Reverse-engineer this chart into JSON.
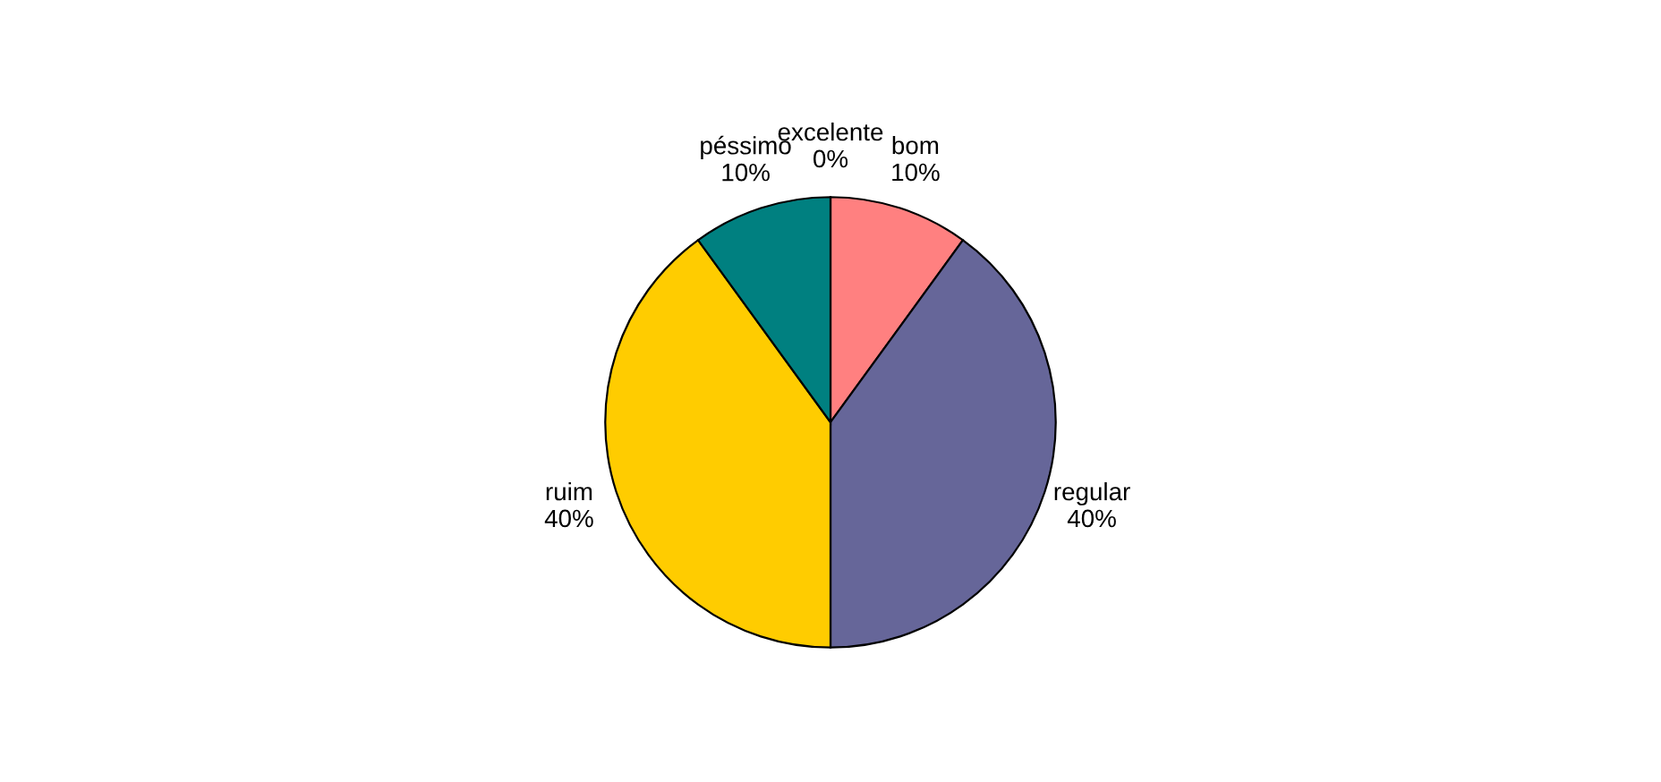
{
  "chart_data": {
    "type": "pie",
    "categories": [
      "excelente",
      "bom",
      "regular",
      "ruim",
      "péssimo"
    ],
    "values": [
      0,
      10,
      40,
      40,
      10
    ],
    "value_labels": [
      "0%",
      "10%",
      "40%",
      "40%",
      "10%"
    ],
    "colors": [
      "#ffffff",
      "#ff8080",
      "#666699",
      "#ffcc00",
      "#008080"
    ]
  }
}
